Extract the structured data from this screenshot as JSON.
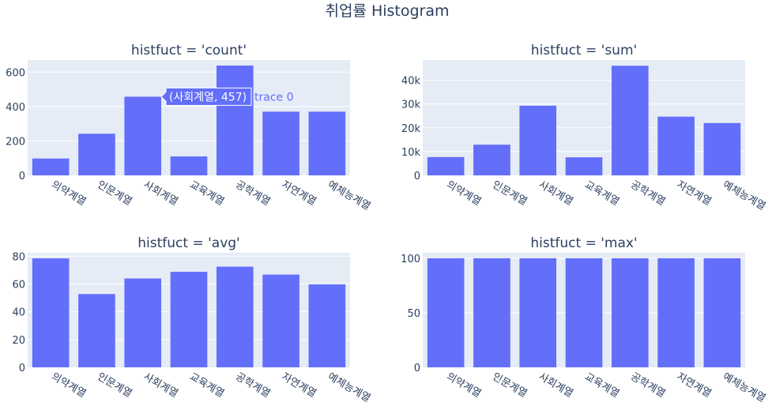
{
  "title": "취업률 Histogram",
  "bar_color": "#636efa",
  "plot_bg_color": "#e5ecf6",
  "chart_data": [
    {
      "type": "bar",
      "title": "histfuct = 'count'",
      "categories": [
        "의약계열",
        "인문계열",
        "사회계열",
        "교육계열",
        "공학계열",
        "자연계열",
        "예체능계열"
      ],
      "values": [
        98,
        242,
        457,
        110,
        638,
        370,
        370
      ],
      "ylim": [
        0,
        670
      ],
      "yticks": [
        0,
        200,
        400,
        600
      ],
      "ytick_labels": [
        "0",
        "200",
        "400",
        "600"
      ],
      "grid": true,
      "hover": {
        "category_index": 2,
        "label": "(사회계열, 457)",
        "trace": "trace 0"
      }
    },
    {
      "type": "bar",
      "title": "histfuct = 'sum'",
      "categories": [
        "의약계열",
        "인문계열",
        "사회계열",
        "교육계열",
        "공학계열",
        "자연계열",
        "예체능계열"
      ],
      "values": [
        7700,
        12900,
        29300,
        7600,
        46100,
        24700,
        22000
      ],
      "ylim": [
        0,
        48500
      ],
      "yticks": [
        0,
        10000,
        20000,
        30000,
        40000
      ],
      "ytick_labels": [
        "0",
        "10k",
        "20k",
        "30k",
        "40k"
      ],
      "grid": true
    },
    {
      "type": "bar",
      "title": "histfuct = 'avg'",
      "categories": [
        "의약계열",
        "인문계열",
        "사회계열",
        "교육계열",
        "공학계열",
        "자연계열",
        "예체능계열"
      ],
      "values": [
        78.5,
        52.8,
        64,
        68.8,
        72.5,
        66.8,
        59.8
      ],
      "ylim": [
        0,
        82.5
      ],
      "yticks": [
        0,
        20,
        40,
        60,
        80
      ],
      "ytick_labels": [
        "0",
        "20",
        "40",
        "60",
        "80"
      ],
      "grid": true
    },
    {
      "type": "bar",
      "title": "histfuct = 'max'",
      "categories": [
        "의약계열",
        "인문계열",
        "사회계열",
        "교육계열",
        "공학계열",
        "자연계열",
        "예체능계열"
      ],
      "values": [
        100,
        100,
        100,
        100,
        100,
        100,
        100
      ],
      "ylim": [
        0,
        105
      ],
      "yticks": [
        0,
        50,
        100
      ],
      "ytick_labels": [
        "0",
        "50",
        "100"
      ],
      "grid": true
    }
  ]
}
